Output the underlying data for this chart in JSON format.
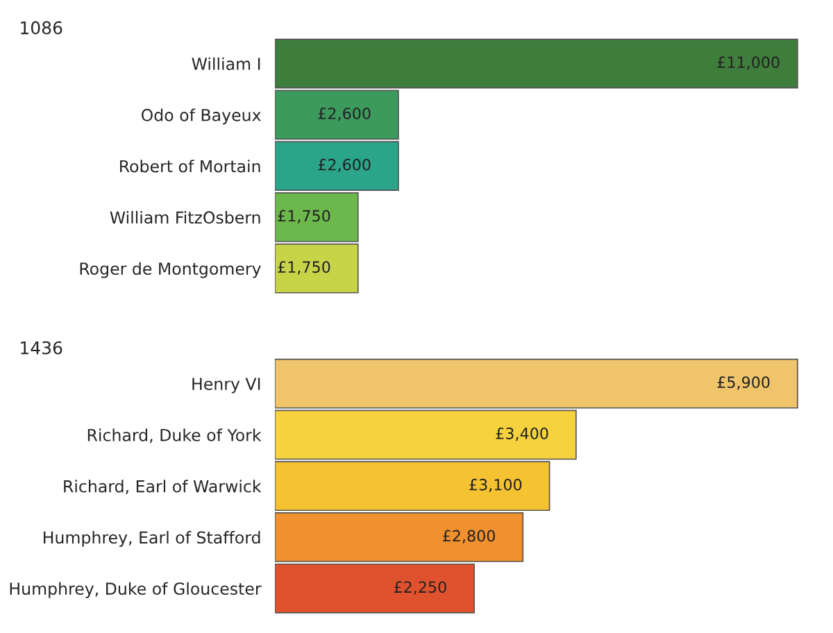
{
  "chart_data": [
    {
      "type": "bar",
      "orientation": "horizontal",
      "title": "1086",
      "categories": [
        "William I",
        "Odo of Bayeux",
        "Robert of Mortain",
        "William FitzOsbern",
        "Roger de Montgomery"
      ],
      "values": [
        11000,
        2600,
        2600,
        1750,
        1750
      ],
      "value_labels": [
        "£11,000",
        "£2,600",
        "£2,600",
        "£1,750",
        "£1,750"
      ],
      "colors": [
        "#3f7d3c",
        "#3c9a5c",
        "#2aa58a",
        "#6cb84c",
        "#c8d448"
      ]
    },
    {
      "type": "bar",
      "orientation": "horizontal",
      "title": "1436",
      "categories": [
        "Henry VI",
        "Richard, Duke of York",
        "Richard, Earl of Warwick",
        "Humphrey, Earl of Stafford",
        "Humphrey, Duke of Gloucester"
      ],
      "values": [
        5900,
        3400,
        3100,
        2800,
        2250
      ],
      "value_labels": [
        "£5,900",
        "£3,400",
        "£3,100",
        "£2,800",
        "£2,250"
      ],
      "colors": [
        "#efc46a",
        "#f6d23e",
        "#f5c232",
        "#f0902e",
        "#e0522e"
      ]
    }
  ]
}
